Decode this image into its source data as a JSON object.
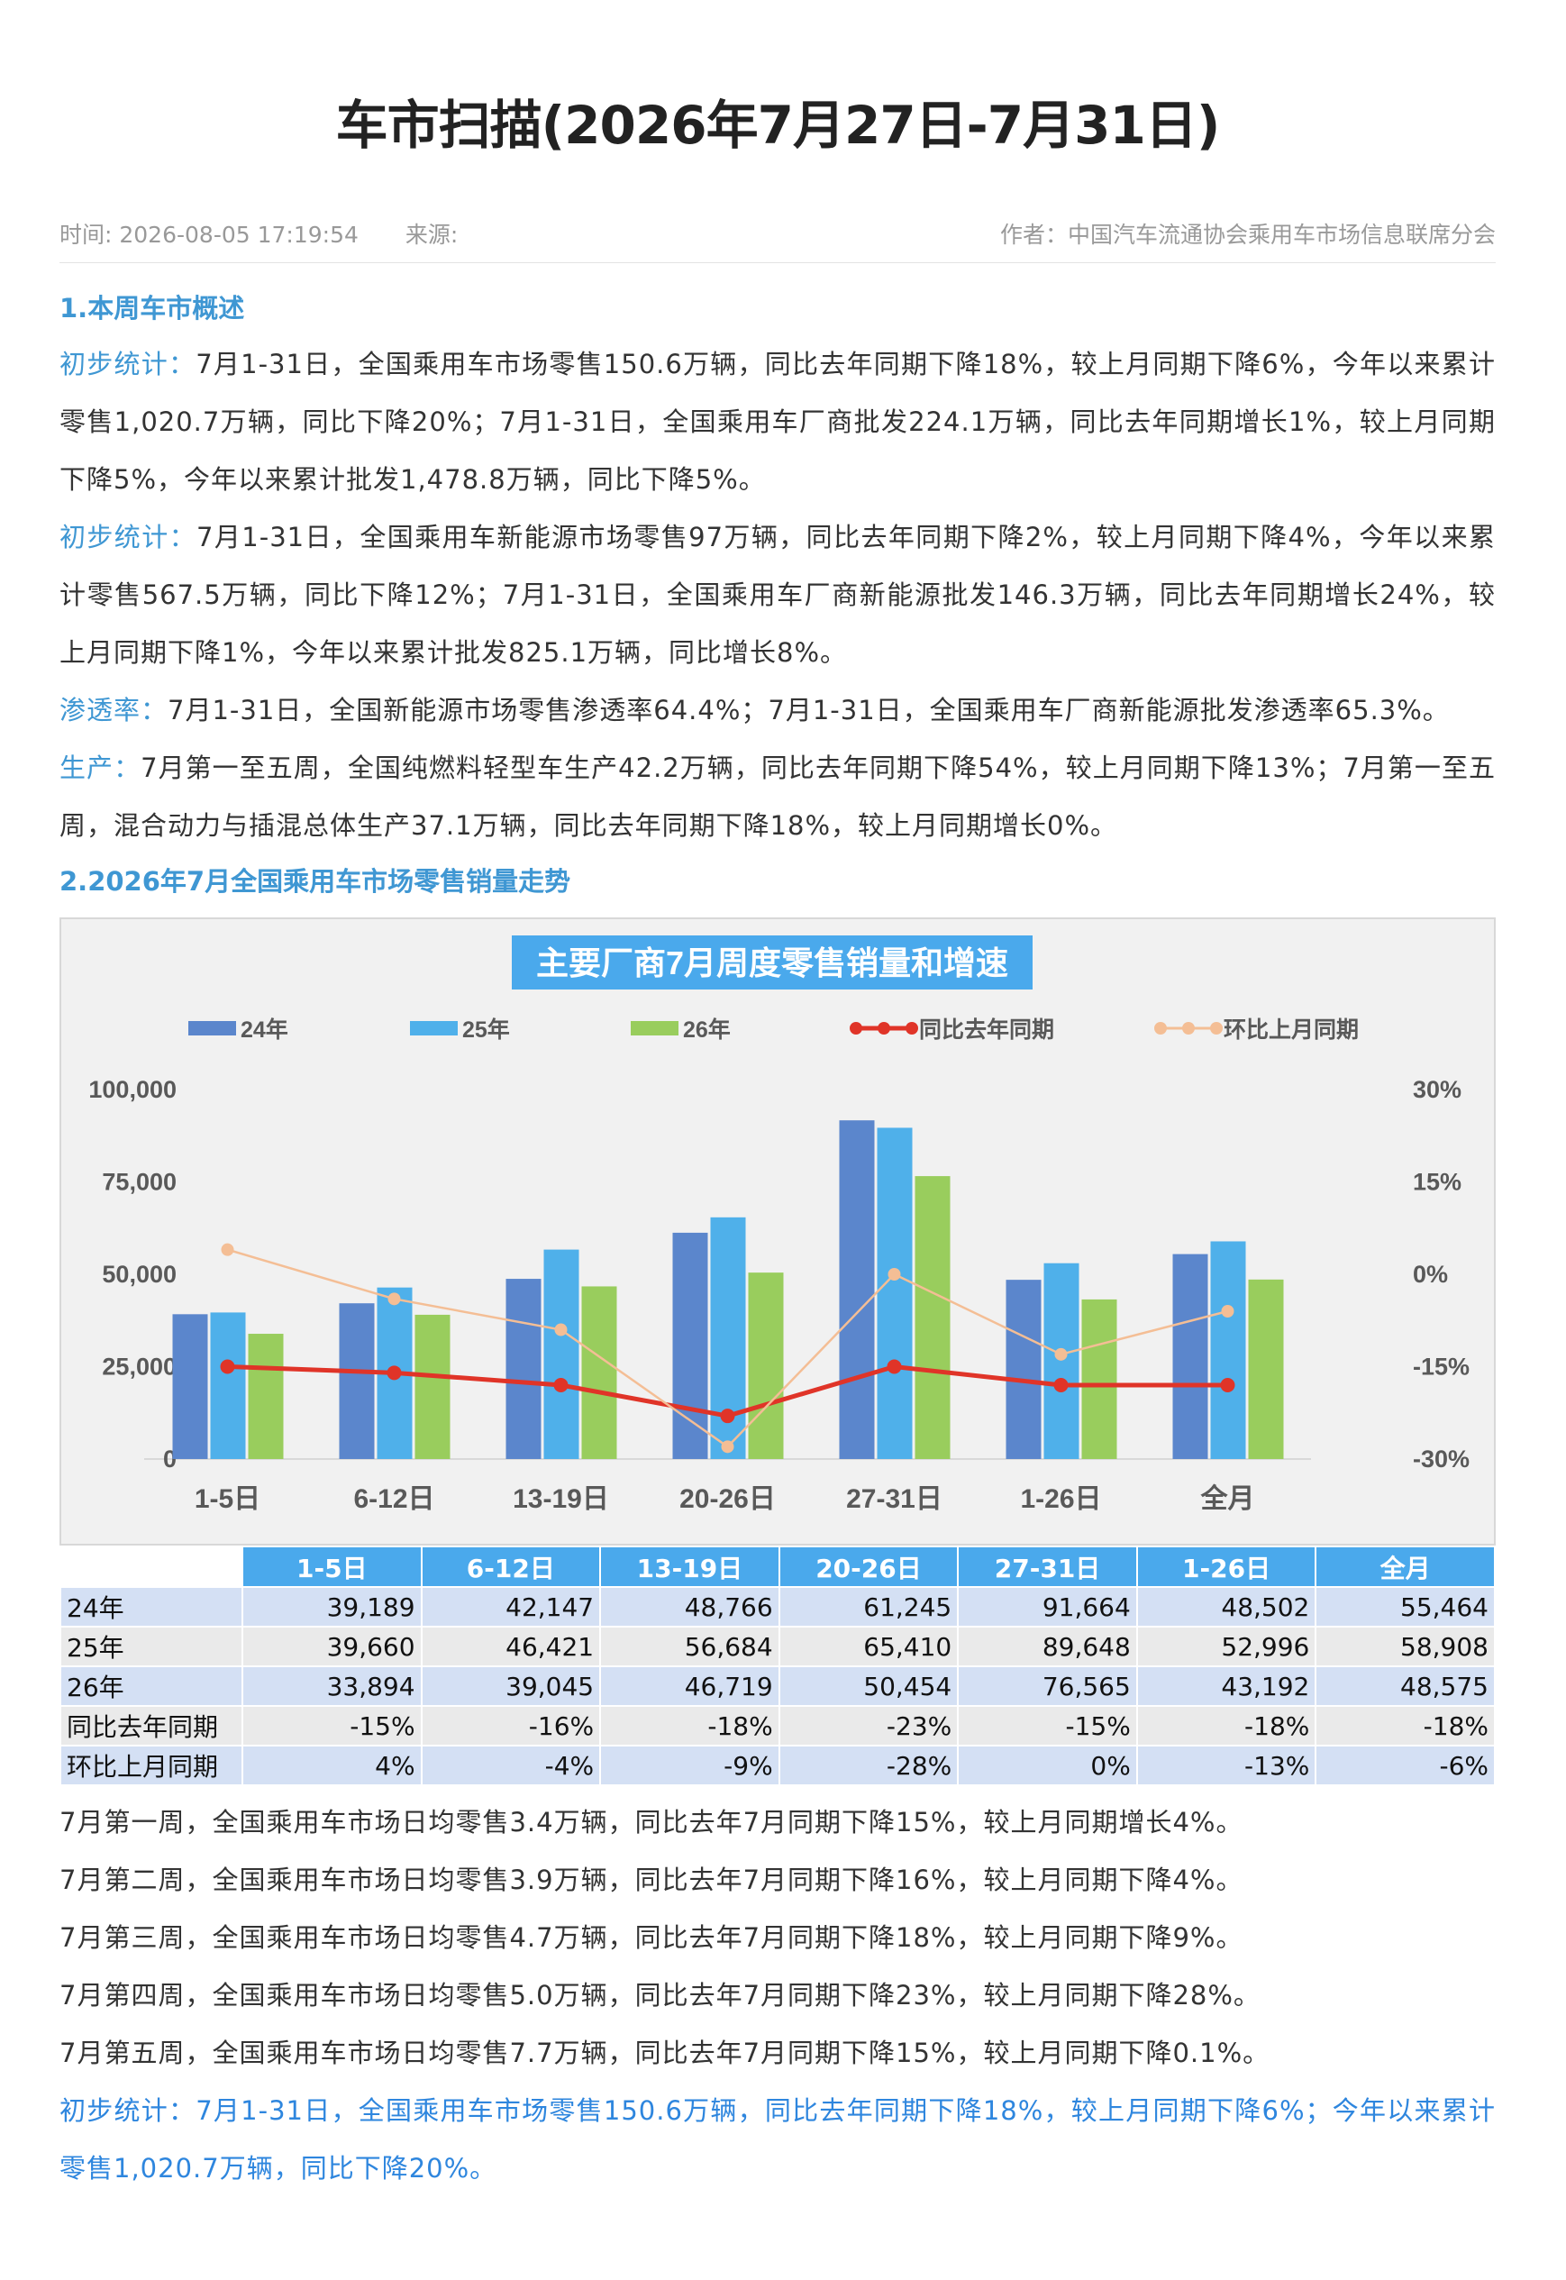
{
  "header": {
    "title": "车市扫描(2026年7月27日-7月31日)",
    "time": "时间: 2026-08-05 17:19:54",
    "source": "来源:",
    "author": "作者：中国汽车流通协会乘用车市场信息联席分会"
  },
  "section1": {
    "title": "1.本周车市概述",
    "paras": [
      {
        "label": "初步统计：",
        "text": "7月1-31日，全国乘用车市场零售150.6万辆，同比去年同期下降18%，较上月同期下降6%，今年以来累计零售1,020.7万辆，同比下降20%；7月1-31日，全国乘用车厂商批发224.1万辆，同比去年同期增长1%，较上月同期下降5%，今年以来累计批发1,478.8万辆，同比下降5%。"
      },
      {
        "label": "初步统计：",
        "text": "7月1-31日，全国乘用车新能源市场零售97万辆，同比去年同期下降2%，较上月同期下降4%，今年以来累计零售567.5万辆，同比下降12%；7月1-31日，全国乘用车厂商新能源批发146.3万辆，同比去年同期增长24%，较上月同期下降1%，今年以来累计批发825.1万辆，同比增长8%。"
      },
      {
        "label": "渗透率：",
        "text": "7月1-31日，全国新能源市场零售渗透率64.4%；7月1-31日，全国乘用车厂商新能源批发渗透率65.3%。"
      },
      {
        "label": "生产：",
        "text": "7月第一至五周，全国纯燃料轻型车生产42.2万辆，同比去年同期下降54%，较上月同期下降13%；7月第一至五周，混合动力与插混总体生产37.1万辆，同比去年同期下降18%，较上月同期增长0%。"
      }
    ]
  },
  "section2": {
    "title": "2.2026年7月全国乘用车市场零售销量走势"
  },
  "chart_data": {
    "type": "bar",
    "title": "主要厂商7月周度零售销量和增速",
    "categories": [
      "1-5日",
      "6-12日",
      "13-19日",
      "20-26日",
      "27-31日",
      "1-26日",
      "全月"
    ],
    "series": [
      {
        "name": "24年",
        "kind": "bar",
        "axis": "left",
        "color": "#5b86cc",
        "values": [
          39189,
          42147,
          48766,
          61245,
          91664,
          48502,
          55464
        ]
      },
      {
        "name": "25年",
        "kind": "bar",
        "axis": "left",
        "color": "#4fb0ea",
        "values": [
          39660,
          46421,
          56684,
          65410,
          89648,
          52996,
          58908
        ]
      },
      {
        "name": "26年",
        "kind": "bar",
        "axis": "left",
        "color": "#99cd5d",
        "values": [
          33894,
          39045,
          46719,
          50454,
          76565,
          43192,
          48575
        ]
      },
      {
        "name": "同比去年同期",
        "kind": "line",
        "axis": "right",
        "color": "#e03428",
        "values": [
          -15,
          -16,
          -18,
          -23,
          -15,
          -18,
          -18
        ]
      },
      {
        "name": "环比上月同期",
        "kind": "line",
        "axis": "right",
        "color": "#f4be95",
        "values": [
          4,
          -4,
          -9,
          -28,
          0,
          -13,
          -6
        ]
      }
    ],
    "y_left": {
      "range": [
        0,
        100000
      ],
      "ticks": [
        "0",
        "25,000",
        "50,000",
        "75,000",
        "100,000"
      ]
    },
    "y_right": {
      "range": [
        -30,
        30
      ],
      "unit": "%",
      "ticks": [
        "-30%",
        "-15%",
        "0%",
        "15%",
        "30%"
      ]
    },
    "legend": "top",
    "grid": false
  },
  "table": {
    "headers": [
      "",
      "1-5日",
      "6-12日",
      "13-19日",
      "20-26日",
      "27-31日",
      "1-26日",
      "全月"
    ],
    "rows": [
      [
        "24年",
        "39,189",
        "42,147",
        "48,766",
        "61,245",
        "91,664",
        "48,502",
        "55,464"
      ],
      [
        "25年",
        "39,660",
        "46,421",
        "56,684",
        "65,410",
        "89,648",
        "52,996",
        "58,908"
      ],
      [
        "26年",
        "33,894",
        "39,045",
        "46,719",
        "50,454",
        "76,565",
        "43,192",
        "48,575"
      ],
      [
        "同比去年同期",
        "-15%",
        "-16%",
        "-18%",
        "-23%",
        "-15%",
        "-18%",
        "-18%"
      ],
      [
        "环比上月同期",
        "4%",
        "-4%",
        "-9%",
        "-28%",
        "0%",
        "-13%",
        "-6%"
      ]
    ]
  },
  "notes": [
    "7月第一周，全国乘用车市场日均零售3.4万辆，同比去年7月同期下降15%，较上月同期增长4%。",
    "7月第二周，全国乘用车市场日均零售3.9万辆，同比去年7月同期下降16%，较上月同期下降4%。",
    "7月第三周，全国乘用车市场日均零售4.7万辆，同比去年7月同期下降18%，较上月同期下降9%。",
    "7月第四周，全国乘用车市场日均零售5.0万辆，同比去年7月同期下降23%，较上月同期下降28%。",
    "7月第五周，全国乘用车市场日均零售7.7万辆，同比去年7月同期下降15%，较上月同期下降0.1%。"
  ],
  "summary": "初步统计：7月1-31日，全国乘用车市场零售150.6万辆，同比去年同期下降18%，较上月同期下降6%；今年以来累计零售1,020.7万辆，同比下降20%。"
}
